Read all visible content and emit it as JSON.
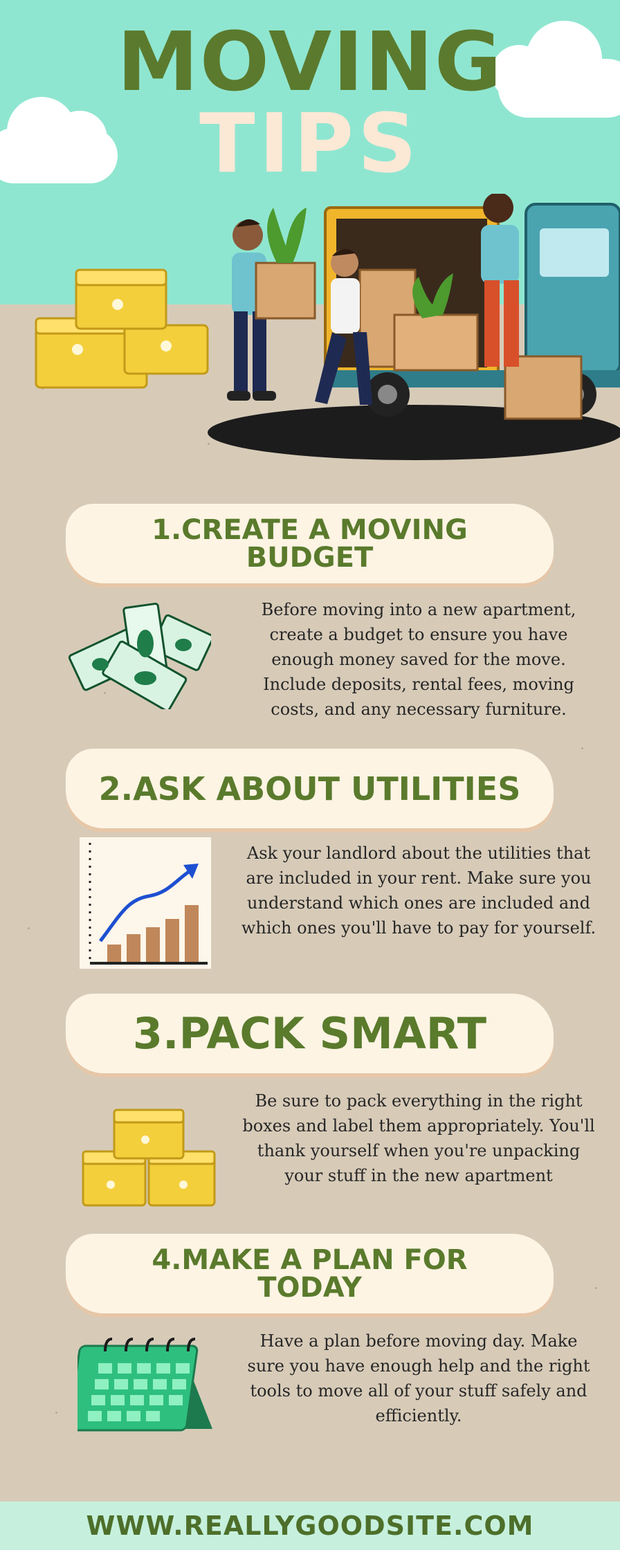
{
  "title": {
    "line1": "MOVING",
    "line2": "TIPS"
  },
  "colors": {
    "sky": "#8fe6d0",
    "sand": "#d7cbb8",
    "green": "#5a7a2c",
    "cream": "#fdf4e4",
    "footer": "#c6f0dd"
  },
  "hero": {
    "image_name": "movers-loading-truck-illustration"
  },
  "tips": [
    {
      "title": "1.CREATE A MOVING BUDGET",
      "description": "Before moving into a new apartment, create a budget to ensure you have enough money saved for the move. Include deposits, rental fees, moving costs, and any necessary furniture.",
      "icon": "money-icon"
    },
    {
      "title": "2.ASK ABOUT UTILITIES",
      "description": "Ask your landlord about the utilities that are included in your rent. Make sure you understand which ones are included and which ones you'll have to pay for yourself.",
      "icon": "chart-icon"
    },
    {
      "title": "3.PACK SMART",
      "description": "Be sure to pack everything in the right boxes and label them appropriately. You'll thank yourself when you're unpacking your stuff in the new apartment",
      "icon": "boxes-icon"
    },
    {
      "title": "4.MAKE A PLAN FOR TODAY",
      "description": "Have a plan before moving day. Make sure you have enough help and the right tools to move all of your stuff safely and efficiently.",
      "icon": "calendar-icon"
    }
  ],
  "footer": {
    "url": "WWW.REALLYGOODSITE.COM"
  }
}
